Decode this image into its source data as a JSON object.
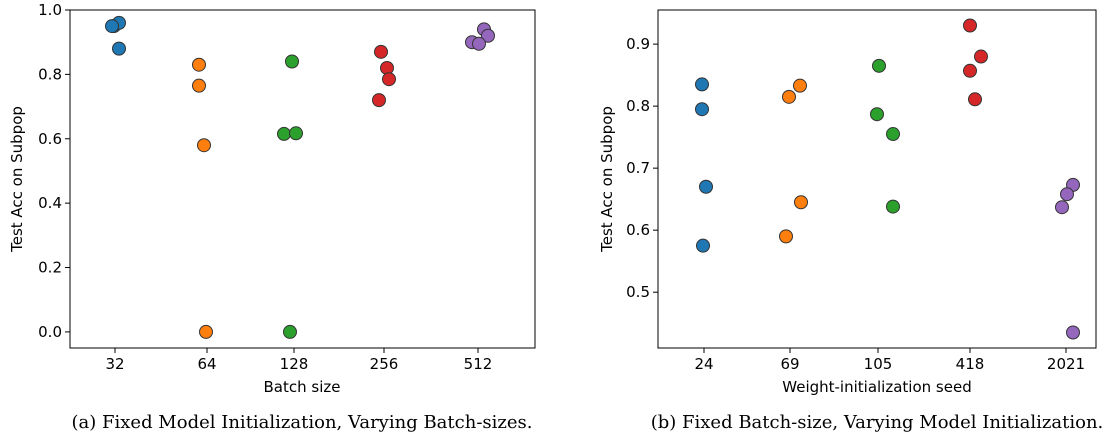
{
  "chart_data": [
    {
      "type": "scatter",
      "caption": "(a) Fixed Model Initialization, Varying Batch-sizes.",
      "xlabel": "Batch size",
      "ylabel": "Test Acc on Subpop",
      "categories": [
        "32",
        "64",
        "128",
        "256",
        "512"
      ],
      "yticks": [
        "0.0",
        "0.2",
        "0.4",
        "0.6",
        "0.8",
        "1.0"
      ],
      "ylim": [
        -0.05,
        1.0
      ],
      "grid": false,
      "colors": [
        "#1f77b4",
        "#ff7f0e",
        "#2ca02c",
        "#d62728",
        "#9467bd"
      ],
      "series": [
        {
          "category": "32",
          "values": [
            0.95,
            0.96,
            0.88,
            0.95
          ]
        },
        {
          "category": "64",
          "values": [
            0.83,
            0.765,
            0.58,
            0.0
          ]
        },
        {
          "category": "128",
          "values": [
            0.84,
            0.615,
            0.617,
            0.0
          ]
        },
        {
          "category": "256",
          "values": [
            0.87,
            0.82,
            0.785,
            0.72
          ]
        },
        {
          "category": "512",
          "values": [
            0.94,
            0.92,
            0.9,
            0.895
          ]
        }
      ]
    },
    {
      "type": "scatter",
      "caption": "(b) Fixed Batch-size, Varying Model Initialization.",
      "xlabel": "Weight-initialization seed",
      "ylabel": "Test Acc on Subpop",
      "categories": [
        "24",
        "69",
        "105",
        "418",
        "2021"
      ],
      "yticks": [
        "0.5",
        "0.6",
        "0.7",
        "0.8",
        "0.9"
      ],
      "ylim": [
        0.41,
        0.955
      ],
      "grid": false,
      "colors": [
        "#1f77b4",
        "#ff7f0e",
        "#2ca02c",
        "#d62728",
        "#9467bd"
      ],
      "series": [
        {
          "category": "24",
          "values": [
            0.835,
            0.795,
            0.67,
            0.575
          ]
        },
        {
          "category": "69",
          "values": [
            0.833,
            0.815,
            0.645,
            0.59
          ]
        },
        {
          "category": "105",
          "values": [
            0.865,
            0.787,
            0.755,
            0.638
          ]
        },
        {
          "category": "418",
          "values": [
            0.93,
            0.88,
            0.857,
            0.811
          ]
        },
        {
          "category": "2021",
          "values": [
            0.673,
            0.658,
            0.637,
            0.435
          ]
        }
      ]
    }
  ]
}
